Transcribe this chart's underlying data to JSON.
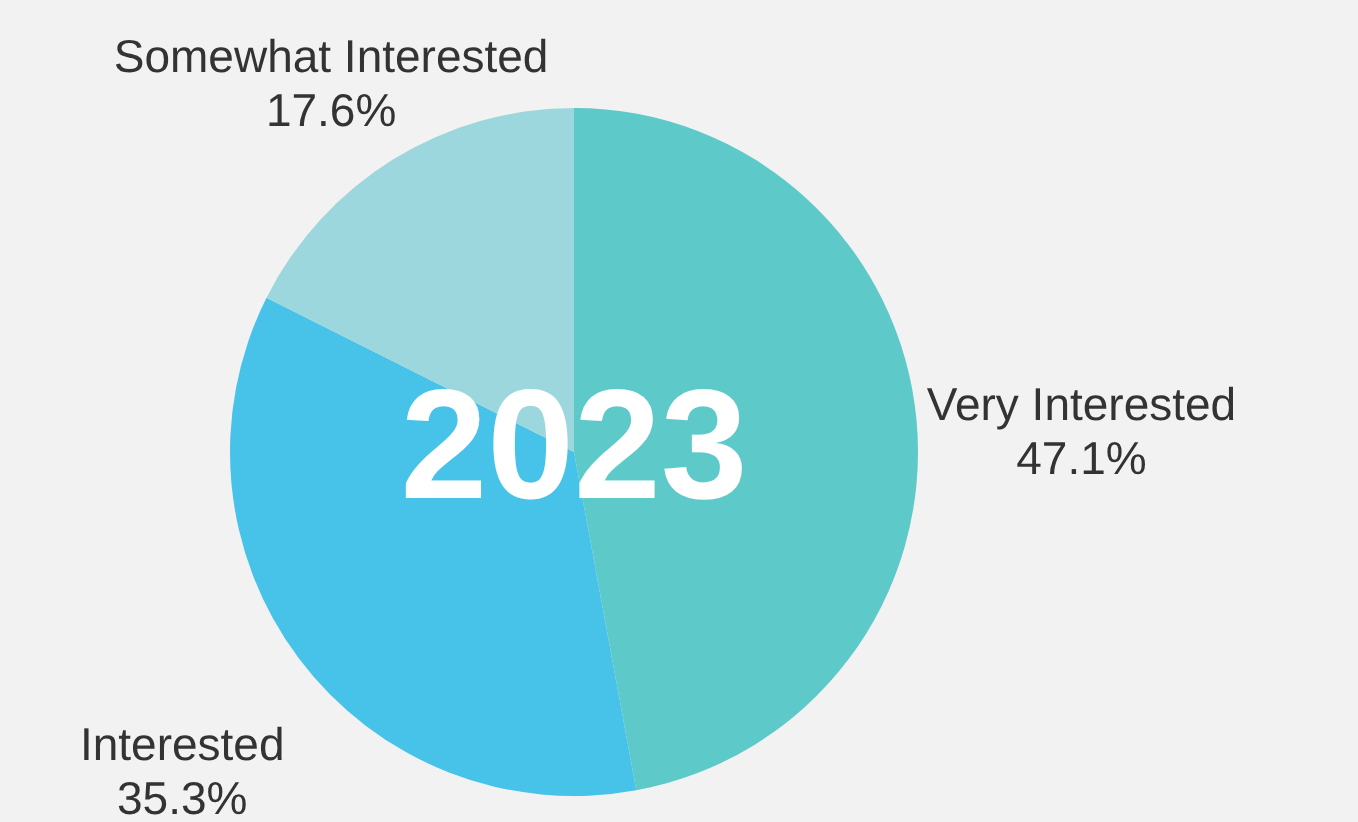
{
  "chart_data": {
    "type": "pie",
    "title": "2023",
    "categories": [
      "Very Interested",
      "Interested",
      "Somewhat Interested"
    ],
    "values": [
      47.1,
      35.3,
      17.6
    ],
    "value_labels": [
      "47.1%",
      "35.3%",
      "17.6%"
    ],
    "colors": [
      "#5ec9c9",
      "#47c3e9",
      "#9dd7de"
    ]
  }
}
